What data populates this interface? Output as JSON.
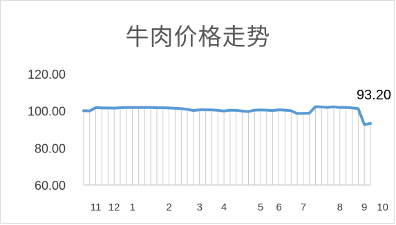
{
  "chart_data": {
    "type": "line",
    "title": "牛肉价格走势",
    "ylim": [
      60,
      120
    ],
    "y_ticks": [
      "120.00",
      "100.00",
      "80.00",
      "60.00"
    ],
    "y_tick_values": [
      120,
      100,
      80,
      60
    ],
    "x_tick_labels": [
      "11",
      "12",
      "1",
      "2",
      "3",
      "4",
      "5",
      "6",
      "7",
      "8",
      "9",
      "10"
    ],
    "x_tick_index": [
      2,
      5,
      8,
      14,
      19,
      23,
      29,
      32,
      36,
      42,
      46,
      49
    ],
    "gridlines": "vertical, light grey",
    "series": [
      {
        "color": "#5b9bd5",
        "values": [
          100.1,
          100.0,
          101.8,
          101.6,
          101.6,
          101.5,
          101.7,
          101.8,
          101.8,
          101.8,
          101.8,
          101.8,
          101.7,
          101.7,
          101.6,
          101.4,
          101.2,
          100.8,
          100.2,
          100.6,
          100.6,
          100.5,
          100.3,
          99.9,
          100.4,
          100.3,
          99.9,
          99.6,
          100.4,
          100.5,
          100.4,
          100.2,
          100.6,
          100.4,
          100.1,
          98.6,
          98.7,
          98.8,
          102.3,
          102.1,
          101.9,
          102.2,
          101.8,
          101.9,
          101.6,
          101.3,
          92.6,
          93.2
        ]
      }
    ],
    "annotation": "93.20"
  }
}
